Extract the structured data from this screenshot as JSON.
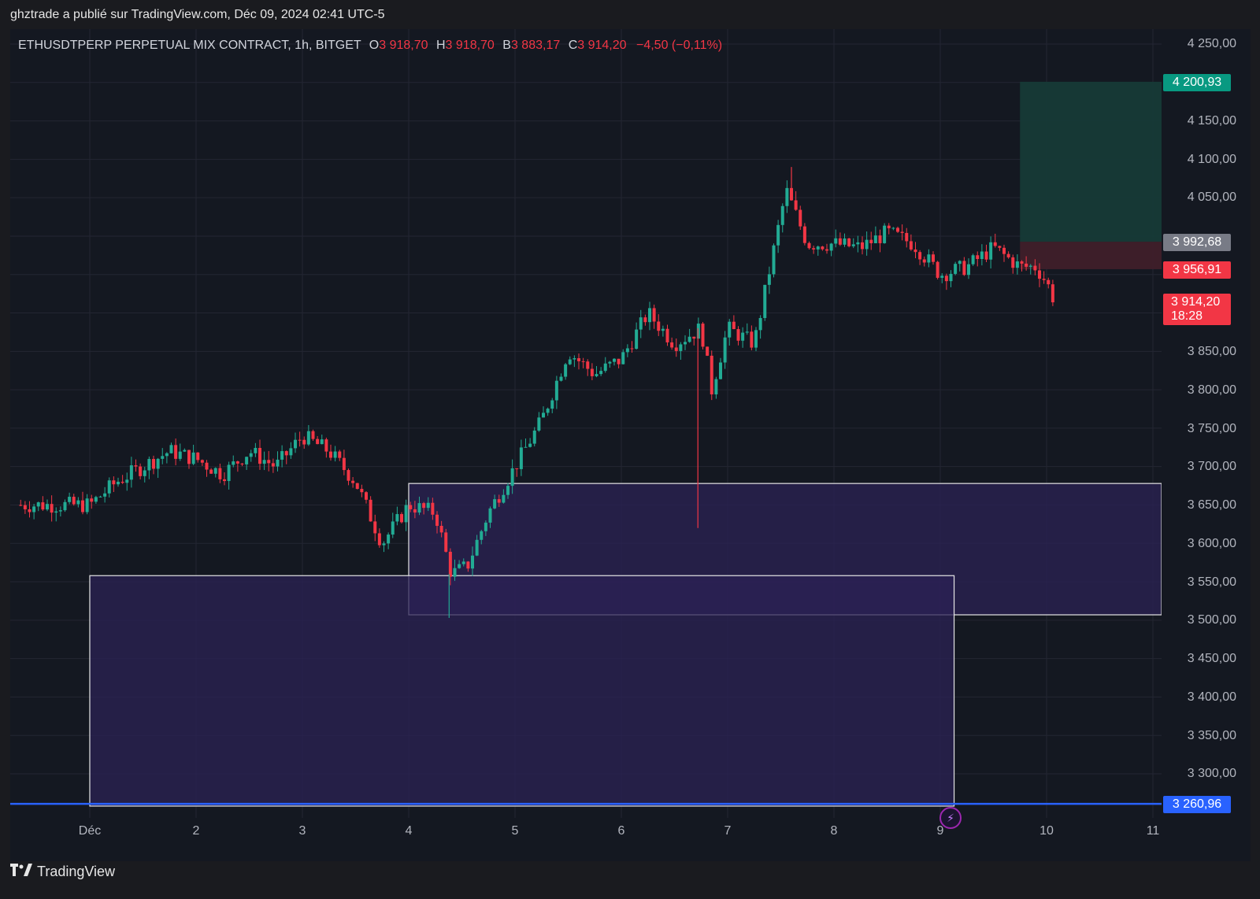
{
  "header": {
    "published_text": "ghztrade a publié sur TradingView.com, Déc 09, 2024 02:41 UTC-5"
  },
  "symbol": {
    "name": "ETHUSDTPERP PERPETUAL MIX CONTRACT, 1h, BITGET",
    "o_label": "O",
    "o_value": "3 918,70",
    "h_label": "H",
    "h_value": "3 918,70",
    "b_label": "B",
    "b_value": "3 883,17",
    "c_label": "C",
    "c_value": "3 914,20",
    "change": "−4,50 (−0,11%)"
  },
  "price_axis": {
    "ticks": [
      "4 250,00",
      "4 150,00",
      "4 100,00",
      "4 050,00",
      "3 850,00",
      "3 800,00",
      "3 750,00",
      "3 700,00",
      "3 650,00",
      "3 600,00",
      "3 550,00",
      "3 500,00",
      "3 450,00",
      "3 400,00",
      "3 350,00",
      "3 300,00"
    ],
    "tags": {
      "target": "4 200,93",
      "entry": "3 992,68",
      "stop": "3 956,91",
      "last": "3 914,20",
      "countdown": "18:28",
      "line": "3 260,96"
    }
  },
  "time_axis": {
    "labels": [
      "Déc",
      "2",
      "3",
      "4",
      "5",
      "6",
      "7",
      "8",
      "9",
      "10",
      "11"
    ]
  },
  "footer": {
    "brand": "TradingView"
  },
  "colors": {
    "up": "#22ab94",
    "down": "#f23645",
    "zone_fill": "#2b2154",
    "target_fill": "#163a37",
    "stop_fill": "#3f1f2a",
    "blue_line": "#2962ff",
    "entry_tag": "#787b86"
  },
  "chart_data": {
    "type": "candlestick",
    "ylim": [
      3240,
      4270
    ],
    "x_day_labels": [
      "Déc",
      "2",
      "3",
      "4",
      "5",
      "6",
      "7",
      "8",
      "9",
      "10",
      "11"
    ],
    "close_path_days": [
      0.0,
      0.25,
      0.5,
      0.75,
      1.0,
      1.25,
      1.5,
      1.75,
      2.0,
      2.25,
      2.5,
      2.75,
      3.0,
      3.25,
      3.4,
      3.55,
      3.75,
      4.0,
      4.25,
      4.5,
      4.75,
      5.0,
      5.25,
      5.5,
      5.75,
      5.85,
      6.0,
      6.25,
      6.4,
      6.55,
      6.75,
      7.0,
      7.25,
      7.5,
      7.75,
      8.0,
      8.25,
      8.5,
      8.75,
      8.9,
      9.0,
      9.08
    ],
    "close_path_prices": [
      3650,
      3680,
      3700,
      3720,
      3710,
      3690,
      3720,
      3700,
      3740,
      3720,
      3680,
      3600,
      3650,
      3640,
      3560,
      3570,
      3640,
      3700,
      3760,
      3850,
      3820,
      3840,
      3900,
      3860,
      3880,
      3800,
      3880,
      3860,
      3960,
      4060,
      3990,
      3990,
      3985,
      4005,
      3990,
      3950,
      3960,
      3985,
      3960,
      3960,
      3940,
      3914
    ],
    "zones": [
      {
        "name": "zone-upper",
        "from_day": 3.0,
        "to_day": 11.5,
        "top": 3678,
        "bottom": 3507
      },
      {
        "name": "zone-lower",
        "from_day": 0.0,
        "to_day": 8.13,
        "top": 3558,
        "bottom": 3258
      }
    ],
    "position": {
      "entry": 3992.68,
      "target": 4200.93,
      "stop": 3956.91,
      "from_day": 8.75,
      "to_day": 10.55
    },
    "horizontal_line": 3260.96
  }
}
